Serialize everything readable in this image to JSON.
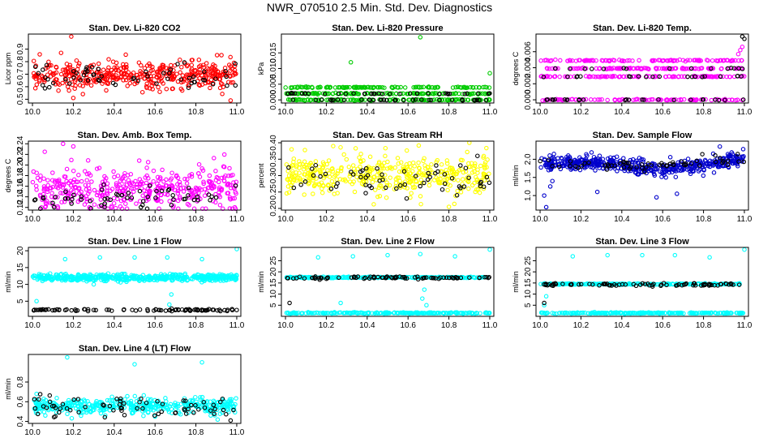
{
  "title": "NWR_070510  2.5 Min. Std. Dev. Diagnostics",
  "colors": {
    "black_series": "#000000"
  },
  "chart_data": [
    {
      "type": "scatter",
      "title": "Stan. Dev. Li-820 CO2",
      "ylabel": "Licor ppm",
      "xlim": [
        9.98,
        11.02
      ],
      "ylim": [
        0.47,
        1.02
      ],
      "xticks": [
        10.0,
        10.2,
        10.4,
        10.6,
        10.8,
        11.0
      ],
      "xtick_labels": [
        "10.0",
        "10.2",
        "10.4",
        "10.6",
        "10.8",
        "11.0"
      ],
      "yticks": [
        0.5,
        0.6,
        0.7,
        0.8,
        0.9
      ],
      "ytick_labels": [
        "0.5",
        "0.6",
        "0.7",
        "0.8",
        "0.9"
      ],
      "grid": false,
      "series": [
        {
          "color": "#ff0000",
          "count": 420,
          "level": 0.69,
          "spread": 0.055,
          "outliers": [
            [
              10.19,
              1.0
            ],
            [
              10.14,
              0.87
            ],
            [
              10.97,
              0.49
            ],
            [
              10.2,
              0.51
            ]
          ]
        },
        {
          "color": "#000000",
          "count": 60,
          "level": 0.68,
          "spread": 0.06,
          "outliers": []
        }
      ]
    },
    {
      "type": "scatter",
      "title": "Stan. Dev. Li-820 Pressure",
      "ylabel": "kPa",
      "xlim": [
        9.98,
        11.02
      ],
      "ylim": [
        -0.001,
        0.021
      ],
      "xticks": [
        10.0,
        10.2,
        10.4,
        10.6,
        10.8,
        11.0
      ],
      "xtick_labels": [
        "10.0",
        "10.2",
        "10.4",
        "10.6",
        "10.8",
        "11.0"
      ],
      "yticks": [
        0.0,
        0.005,
        0.01,
        0.015
      ],
      "ytick_labels": [
        "0.000",
        "0.005",
        "0.010",
        "0.015"
      ],
      "grid": false,
      "series": [
        {
          "color": "#00cc00",
          "count": 400,
          "levels": [
            0.0,
            0.002,
            0.004
          ],
          "outliers": [
            [
              10.32,
              0.012
            ],
            [
              10.66,
              0.02
            ],
            [
              11.0,
              0.0085
            ]
          ]
        },
        {
          "color": "#000000",
          "count": 70,
          "levels": [
            0.0,
            0.002
          ],
          "outliers": []
        }
      ]
    },
    {
      "type": "scatter",
      "title": "Stan. Dev. Li-820 Temp.",
      "ylabel": "degrees C",
      "xlim": [
        9.98,
        11.02
      ],
      "ylim": [
        -0.0004,
        0.0082
      ],
      "xticks": [
        10.0,
        10.2,
        10.4,
        10.6,
        10.8,
        11.0
      ],
      "xtick_labels": [
        "10.0",
        "10.2",
        "10.4",
        "10.6",
        "10.8",
        "11.0"
      ],
      "yticks": [
        0.0,
        0.002,
        0.004,
        0.006
      ],
      "ytick_labels": [
        "0.000",
        "0.002",
        "0.004",
        "0.006"
      ],
      "grid": false,
      "series": [
        {
          "color": "#ff00ff",
          "count": 420,
          "levels": [
            0.0,
            0.0029,
            0.0039,
            0.0049
          ],
          "outliers": [
            [
              10.98,
              0.0062
            ],
            [
              10.97,
              0.0057
            ],
            [
              10.99,
              0.0066
            ]
          ]
        },
        {
          "color": "#000000",
          "count": 60,
          "levels": [
            0.0,
            0.0029,
            0.0039
          ],
          "outliers": [
            [
              10.99,
              0.0079
            ],
            [
              11.0,
              0.0076
            ]
          ]
        }
      ]
    },
    {
      "type": "scatter",
      "title": "Stan. Dev. Amb. Box Temp.",
      "ylabel": "degrees C",
      "xlim": [
        9.98,
        11.02
      ],
      "ylim": [
        0.115,
        0.245
      ],
      "xticks": [
        10.0,
        10.2,
        10.4,
        10.6,
        10.8,
        11.0
      ],
      "xtick_labels": [
        "10.0",
        "10.2",
        "10.4",
        "10.6",
        "10.8",
        "11.0"
      ],
      "yticks": [
        0.12,
        0.14,
        0.16,
        0.18,
        0.2,
        0.22,
        0.24
      ],
      "ytick_labels": [
        "0.12",
        "0.14",
        "0.16",
        "0.18",
        "0.20",
        "0.22",
        "0.24"
      ],
      "grid": false,
      "series": [
        {
          "color": "#ff00ff",
          "count": 420,
          "level": 0.155,
          "spread": 0.022,
          "outliers": [
            [
              10.15,
              0.24
            ],
            [
              10.2,
              0.235
            ],
            [
              10.06,
              0.225
            ]
          ]
        },
        {
          "color": "#000000",
          "count": 60,
          "level": 0.14,
          "spread": 0.012,
          "outliers": []
        }
      ]
    },
    {
      "type": "scatter",
      "title": "Stan. Dev. Gas Stream RH",
      "ylabel": "percent",
      "xlim": [
        9.98,
        11.02
      ],
      "ylim": [
        0.195,
        0.405
      ],
      "xticks": [
        10.0,
        10.2,
        10.4,
        10.6,
        10.8,
        11.0
      ],
      "xtick_labels": [
        "10.0",
        "10.2",
        "10.4",
        "10.6",
        "10.8",
        "11.0"
      ],
      "yticks": [
        0.2,
        0.25,
        0.3,
        0.35,
        0.4
      ],
      "ytick_labels": [
        "0.20",
        "0.25",
        "0.30",
        "0.35",
        "0.40"
      ],
      "grid": false,
      "series": [
        {
          "color": "#ffff00",
          "count": 420,
          "level": 0.3,
          "spread": 0.03,
          "outliers": [
            [
              10.9,
              0.4
            ],
            [
              10.8,
              0.205
            ],
            [
              10.03,
              0.38
            ]
          ]
        },
        {
          "color": "#000000",
          "count": 60,
          "level": 0.29,
          "spread": 0.028,
          "outliers": [
            [
              10.94,
              0.36
            ]
          ]
        }
      ]
    },
    {
      "type": "scatter",
      "title": "Stan. Dev. Sample Flow",
      "ylabel": "ml/min",
      "xlim": [
        9.98,
        11.02
      ],
      "ylim": [
        0.6,
        2.5
      ],
      "xticks": [
        10.0,
        10.2,
        10.4,
        10.6,
        10.8,
        11.0
      ],
      "xtick_labels": [
        "10.0",
        "10.2",
        "10.4",
        "10.6",
        "10.8",
        "11.0"
      ],
      "yticks": [
        1.0,
        1.5,
        2.0
      ],
      "ytick_labels": [
        "1.0",
        "1.5",
        "2.0"
      ],
      "grid": false,
      "series": [
        {
          "color": "#0000cc",
          "count": 480,
          "trend": [
            [
              10.0,
              1.9
            ],
            [
              10.3,
              1.9
            ],
            [
              10.6,
              1.72
            ],
            [
              10.8,
              1.85
            ],
            [
              11.0,
              2.05
            ]
          ],
          "spread": 0.1,
          "outliers": [
            [
              10.02,
              1.0
            ],
            [
              10.03,
              0.68
            ],
            [
              10.05,
              1.25
            ],
            [
              10.06,
              1.4
            ],
            [
              10.28,
              1.1
            ],
            [
              10.57,
              0.95
            ],
            [
              10.67,
              1.05
            ],
            [
              10.88,
              2.35
            ]
          ]
        },
        {
          "color": "#000000",
          "count": 60,
          "trend": [
            [
              10.0,
              1.85
            ],
            [
              10.5,
              1.8
            ],
            [
              11.0,
              2.0
            ]
          ],
          "spread": 0.07,
          "outliers": []
        }
      ]
    },
    {
      "type": "scatter",
      "title": "Stan. Dev. Line 1 Flow",
      "ylabel": "ml/min",
      "xlim": [
        9.98,
        11.02
      ],
      "ylim": [
        0.5,
        21.0
      ],
      "xticks": [
        10.0,
        10.2,
        10.4,
        10.6,
        10.8,
        11.0
      ],
      "xtick_labels": [
        "10.0",
        "10.2",
        "10.4",
        "10.6",
        "10.8",
        "11.0"
      ],
      "yticks": [
        5,
        10,
        15,
        20
      ],
      "ytick_labels": [
        "5",
        "10",
        "15",
        "20"
      ],
      "grid": false,
      "series": [
        {
          "color": "#00ffff",
          "count": 480,
          "level": 12.0,
          "spread": 0.5,
          "outliers": [
            [
              10.16,
              17.5
            ],
            [
              10.33,
              18.0
            ],
            [
              10.5,
              18.0
            ],
            [
              10.66,
              18.0
            ],
            [
              10.83,
              17.5
            ],
            [
              11.0,
              20.5
            ],
            [
              10.02,
              5.0
            ],
            [
              10.67,
              4.0
            ],
            [
              10.68,
              7.0
            ],
            [
              10.3,
              10.0
            ]
          ]
        },
        {
          "color": "#000000",
          "count": 90,
          "level": 2.4,
          "spread": 0.15,
          "outliers": []
        }
      ]
    },
    {
      "type": "scatter",
      "title": "Stan. Dev. Line 2 Flow",
      "ylabel": "ml/min",
      "xlim": [
        9.98,
        11.02
      ],
      "ylim": [
        0.0,
        31.0
      ],
      "xticks": [
        10.0,
        10.2,
        10.4,
        10.6,
        10.8,
        11.0
      ],
      "xtick_labels": [
        "10.0",
        "10.2",
        "10.4",
        "10.6",
        "10.8",
        "11.0"
      ],
      "yticks": [
        5,
        10,
        15,
        20,
        25
      ],
      "ytick_labels": [
        "5",
        "10",
        "15",
        "20",
        "25"
      ],
      "grid": false,
      "series": [
        {
          "color": "#00ffff",
          "count": 480,
          "levels": [
            1.5,
            17.5
          ],
          "outliers": [
            [
              10.16,
              26.5
            ],
            [
              10.33,
              27.0
            ],
            [
              10.5,
              27.5
            ],
            [
              10.66,
              28.0
            ],
            [
              10.83,
              27.0
            ],
            [
              11.0,
              30.0
            ],
            [
              10.67,
              8.0
            ],
            [
              10.68,
              12.0
            ],
            [
              10.69,
              5.0
            ],
            [
              10.27,
              6.0
            ]
          ]
        },
        {
          "color": "#000000",
          "count": 80,
          "level": 17.3,
          "spread": 0.3,
          "outliers": [
            [
              10.02,
              6.0
            ]
          ]
        }
      ]
    },
    {
      "type": "scatter",
      "title": "Stan. Dev. Line 3 Flow",
      "ylabel": "ml/min",
      "xlim": [
        9.98,
        11.02
      ],
      "ylim": [
        0.0,
        31.0
      ],
      "xticks": [
        10.0,
        10.2,
        10.4,
        10.6,
        10.8,
        11.0
      ],
      "xtick_labels": [
        "10.0",
        "10.2",
        "10.4",
        "10.6",
        "10.8",
        "11.0"
      ],
      "yticks": [
        5,
        10,
        15,
        20,
        25
      ],
      "ytick_labels": [
        "5",
        "10",
        "15",
        "20",
        "25"
      ],
      "grid": false,
      "series": [
        {
          "color": "#00ffff",
          "count": 480,
          "levels": [
            1.5,
            14.5
          ],
          "outliers": [
            [
              10.16,
              27.0
            ],
            [
              10.33,
              27.5
            ],
            [
              10.5,
              27.5
            ],
            [
              10.66,
              27.5
            ],
            [
              10.83,
              26.5
            ],
            [
              11.0,
              30.0
            ],
            [
              10.02,
              5.0
            ],
            [
              10.03,
              9.0
            ]
          ]
        },
        {
          "color": "#000000",
          "count": 80,
          "level": 14.3,
          "spread": 0.3,
          "outliers": [
            [
              10.02,
              6.0
            ]
          ]
        }
      ]
    },
    {
      "type": "scatter",
      "title": "Stan. Dev. Line 4 (LT) Flow",
      "ylabel": "ml/min",
      "xlim": [
        9.98,
        11.02
      ],
      "ylim": [
        0.38,
        1.08
      ],
      "xticks": [
        10.0,
        10.2,
        10.4,
        10.6,
        10.8,
        11.0
      ],
      "xtick_labels": [
        "10.0",
        "10.2",
        "10.4",
        "10.6",
        "10.8",
        "11.0"
      ],
      "yticks": [
        0.4,
        0.6,
        0.8
      ],
      "ytick_labels": [
        "0.4",
        "0.6",
        "0.8"
      ],
      "grid": false,
      "series": [
        {
          "color": "#00ffff",
          "count": 420,
          "level": 0.56,
          "spread": 0.04,
          "outliers": [
            [
              10.17,
              1.05
            ],
            [
              10.5,
              0.98
            ],
            [
              10.83,
              1.0
            ],
            [
              10.02,
              0.68
            ],
            [
              10.6,
              0.45
            ]
          ]
        },
        {
          "color": "#000000",
          "count": 70,
          "level": 0.55,
          "spread": 0.05,
          "outliers": [
            [
              10.97,
              0.41
            ]
          ]
        }
      ]
    }
  ]
}
